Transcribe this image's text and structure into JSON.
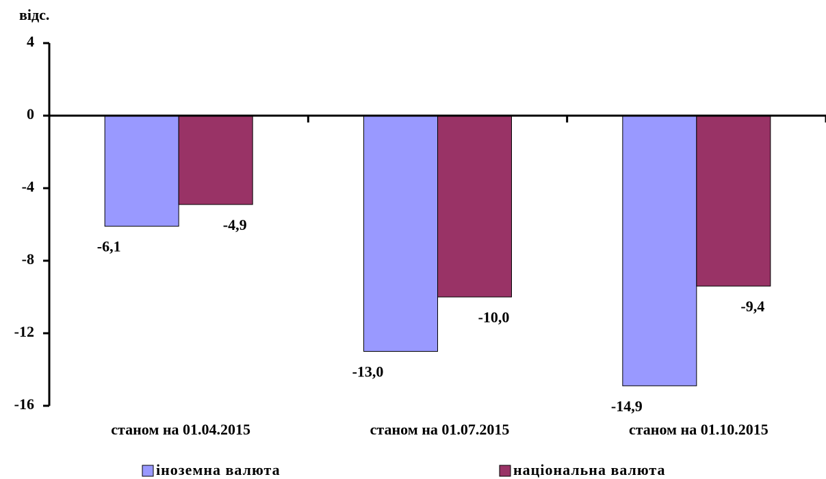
{
  "chart_data": {
    "type": "bar",
    "y_axis_label": "відс.",
    "categories": [
      "станом на 01.04.2015",
      "станом на 01.07.2015",
      "станом на 01.10.2015"
    ],
    "series": [
      {
        "name": "іноземна валюта",
        "color": "#9999ff",
        "values": [
          -6.1,
          -13.0,
          -14.9
        ],
        "value_labels": [
          "-6,1",
          "-13,0",
          "-14,9"
        ]
      },
      {
        "name": "національна валюта",
        "color": "#993366",
        "values": [
          -4.9,
          -10.0,
          -9.4
        ],
        "value_labels": [
          "-4,9",
          "-10,0",
          "-9,4"
        ]
      }
    ],
    "ylim": [
      -16,
      4
    ],
    "yticks": [
      -16,
      -12,
      -8,
      -4,
      0,
      4
    ],
    "legend": "bottom"
  }
}
